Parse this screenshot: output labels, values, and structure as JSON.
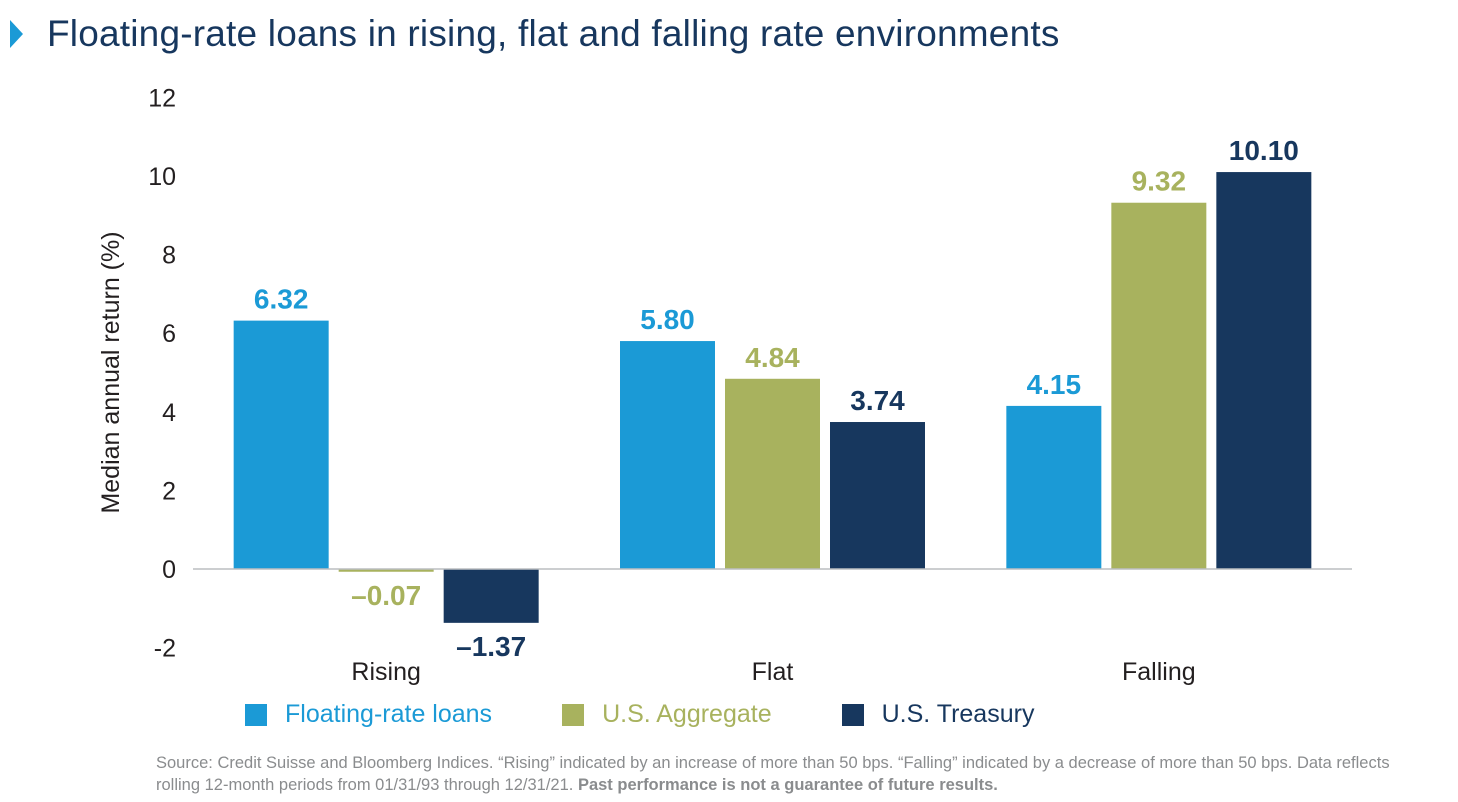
{
  "chart_data": {
    "type": "bar",
    "title": "Floating-rate loans in rising, flat and falling rate environments",
    "ylabel": "Median annual return (%)",
    "xlabel": "",
    "categories": [
      "Rising",
      "Flat",
      "Falling"
    ],
    "ylim": [
      -2,
      12
    ],
    "yticks": [
      -2,
      0,
      2,
      4,
      6,
      8,
      10,
      12
    ],
    "grid": false,
    "legend_position": "bottom",
    "series": [
      {
        "name": "Floating-rate loans",
        "color": "#1b9ad6",
        "values": [
          6.32,
          5.8,
          4.15
        ],
        "labels": [
          "6.32",
          "5.80",
          "4.15"
        ]
      },
      {
        "name": "U.S. Aggregate",
        "color": "#a8b25e",
        "values": [
          -0.07,
          4.84,
          9.32
        ],
        "labels": [
          "–0.07",
          "4.84",
          "9.32"
        ]
      },
      {
        "name": "U.S. Treasury",
        "color": "#17375e",
        "values": [
          -1.37,
          3.74,
          10.1
        ],
        "labels": [
          "–1.37",
          "3.74",
          "10.10"
        ]
      }
    ]
  },
  "footer": {
    "source_text": "Source: Credit Suisse and Bloomberg Indices. “Rising” indicated by an increase of more than 50 bps. “Falling” indicated by a decrease of more than 50 bps. Data reflects rolling 12-month periods from 01/31/93 through 12/31/21.",
    "disclaimer": "Past performance is not a guarantee of future results."
  }
}
